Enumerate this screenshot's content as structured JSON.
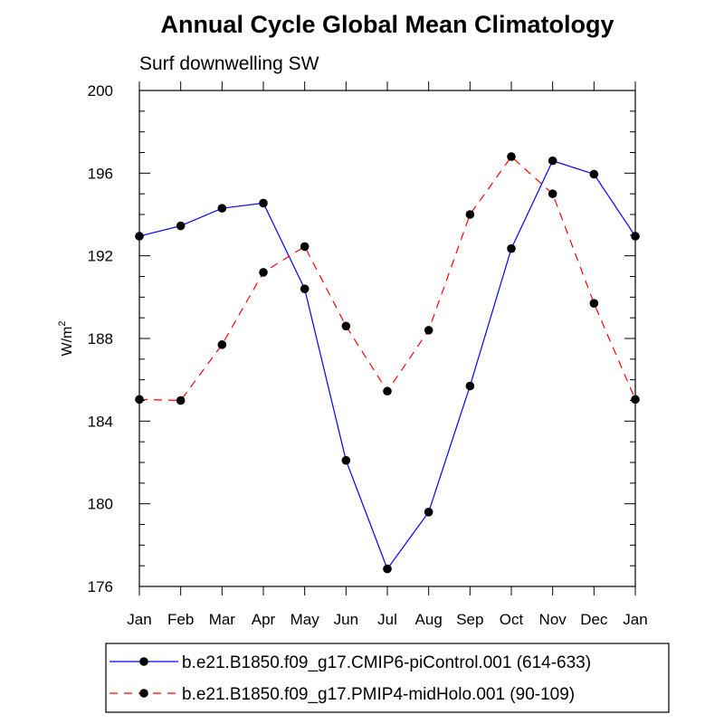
{
  "chart_data": {
    "type": "line",
    "title": "Annual Cycle Global Mean Climatology",
    "subtitle": "Surf downwelling SW",
    "xlabel": "",
    "ylabel": "W/m",
    "ylabel_superscript": "2",
    "categories": [
      "Jan",
      "Feb",
      "Mar",
      "Apr",
      "May",
      "Jun",
      "Jul",
      "Aug",
      "Sep",
      "Oct",
      "Nov",
      "Dec",
      "Jan"
    ],
    "ylim": [
      176,
      200
    ],
    "yticks": [
      176,
      180,
      184,
      188,
      192,
      196,
      200
    ],
    "grid": false,
    "legend_position": "bottom",
    "series": [
      {
        "name": "b.e21.B1850.f09_g17.CMIP6-piControl.001 (614-633)",
        "color": "#0000ff",
        "dash": "solid",
        "values": [
          192.95,
          193.45,
          194.3,
          194.55,
          190.4,
          182.1,
          176.85,
          179.6,
          185.7,
          192.35,
          196.6,
          195.95,
          192.95
        ]
      },
      {
        "name": "b.e21.B1850.f09_g17.PMIP4-midHolo.001 (90-109)",
        "color": "#ff0000",
        "dash": "dashed",
        "values": [
          185.05,
          185.0,
          187.7,
          191.2,
          192.45,
          188.6,
          185.45,
          188.4,
          194.0,
          196.8,
          195.0,
          189.7,
          185.05
        ]
      }
    ]
  }
}
